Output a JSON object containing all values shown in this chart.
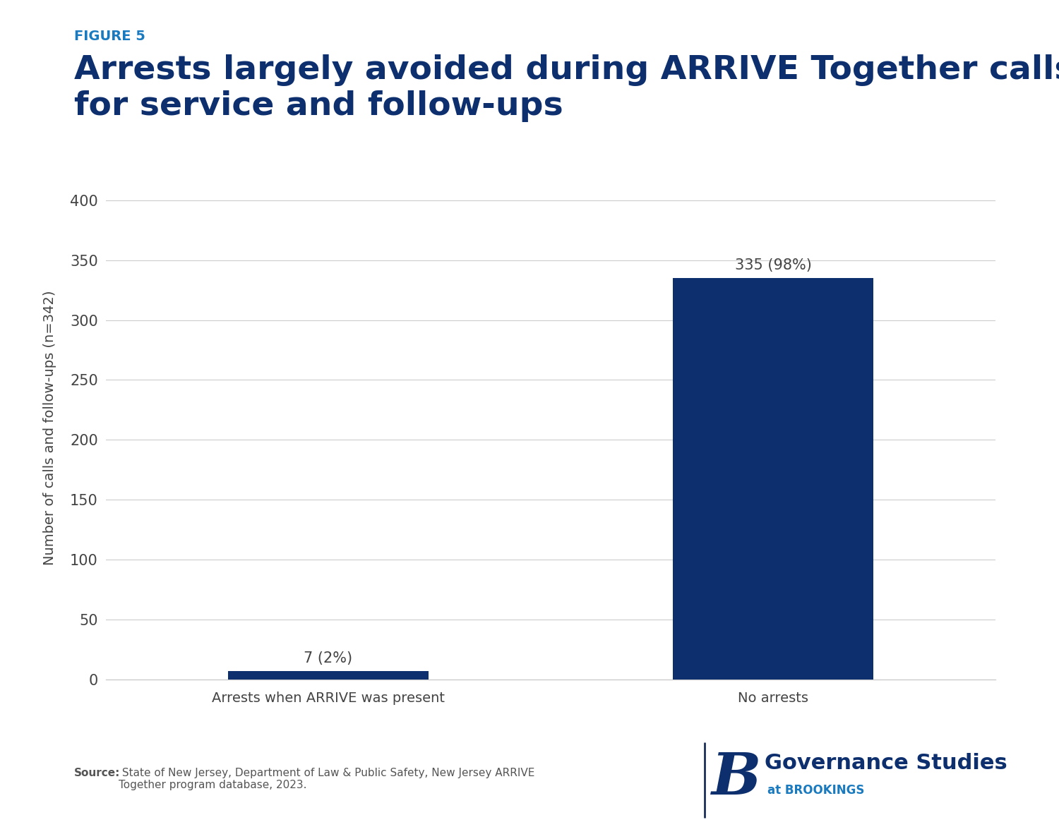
{
  "figure_label": "FIGURE 5",
  "title_line1": "Arrests largely avoided during ARRIVE Together calls",
  "title_line2": "for service and follow-ups",
  "categories": [
    "Arrests when ARRIVE was present",
    "No arrests"
  ],
  "values": [
    7,
    335
  ],
  "bar_labels": [
    "7 (2%)",
    "335 (98%)"
  ],
  "bar_color": "#0d2f6e",
  "ylabel": "Number of calls and follow-ups (n=342)",
  "ylim": [
    0,
    420
  ],
  "yticks": [
    0,
    50,
    100,
    150,
    200,
    250,
    300,
    350,
    400
  ],
  "figure_label_color": "#1a7abf",
  "title_color": "#0d2f6e",
  "source_bold": "Source:",
  "source_rest": " State of New Jersey, Department of Law & Public Safety, New Jersey ARRIVE\nTogether program database, 2023.",
  "background_color": "#ffffff",
  "grid_color": "#cccccc",
  "tick_label_color": "#444444",
  "bar_label_fontsize": 15,
  "axis_label_fontsize": 14,
  "tick_fontsize": 15,
  "title_fontsize": 34,
  "figure_label_fontsize": 14,
  "source_fontsize": 11,
  "x_positions": [
    1,
    3
  ],
  "bar_width": 0.9,
  "xlim": [
    0,
    4
  ]
}
